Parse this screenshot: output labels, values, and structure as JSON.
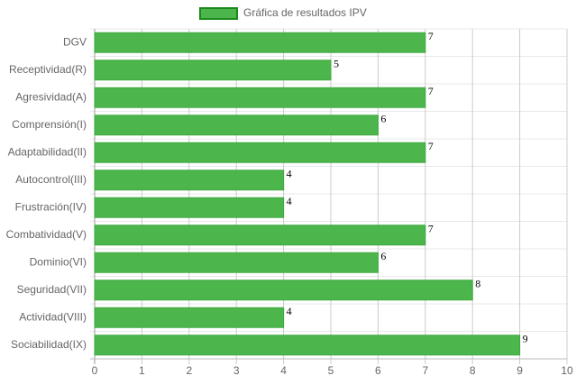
{
  "chart_data": {
    "type": "hbar",
    "categories": [
      "DGV",
      "Receptividad(R)",
      "Agresividad(A)",
      "Comprensión(I)",
      "Adaptabilidad(II)",
      "Autocontrol(III)",
      "Frustración(IV)",
      "Combatividad(V)",
      "Dominio(VI)",
      "Seguridad(VII)",
      "Actividad(VIII)",
      "Sociabilidad(IX)"
    ],
    "series": [
      {
        "name": "Gráfica de resultados IPV",
        "color": "#4cb54c",
        "values": [
          7,
          5,
          7,
          6,
          7,
          4,
          4,
          7,
          6,
          8,
          4,
          9
        ]
      }
    ],
    "xlim": [
      0,
      10
    ],
    "xticks": [
      0,
      1,
      2,
      3,
      4,
      5,
      6,
      7,
      8,
      9,
      10
    ],
    "grid": true,
    "legend": "top"
  }
}
